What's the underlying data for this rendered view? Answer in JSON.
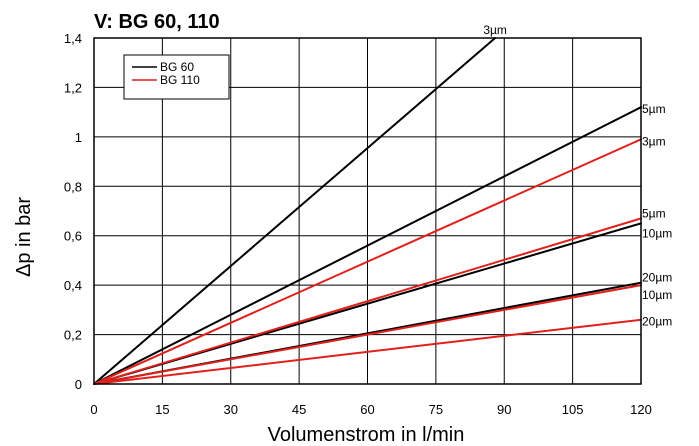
{
  "chart_data": {
    "type": "line",
    "title": "V: BG 60, 110",
    "xlabel": "Volumenstrom in l/min",
    "ylabel": "Δp in bar",
    "xlim": [
      0,
      120
    ],
    "ylim": [
      0,
      1.4
    ],
    "x_ticks": [
      "0",
      "15",
      "30",
      "45",
      "60",
      "75",
      "90",
      "105",
      "120"
    ],
    "y_ticks": [
      "0",
      "0,2",
      "0,4",
      "0,6",
      "0,8",
      "1",
      "1,2",
      "1,4"
    ],
    "grid": true,
    "legend": {
      "placement": "top-left",
      "entries": [
        {
          "name": "BG 60",
          "color": "#000000"
        },
        {
          "name": "BG 110",
          "color": "#e0201b"
        }
      ]
    },
    "series": [
      {
        "group": "BG 60",
        "label": "3µm",
        "color": "#000000",
        "points": [
          [
            0,
            0
          ],
          [
            88,
            1.4
          ]
        ]
      },
      {
        "group": "BG 60",
        "label": "5µm",
        "color": "#000000",
        "points": [
          [
            0,
            0
          ],
          [
            120,
            1.12
          ]
        ]
      },
      {
        "group": "BG 60",
        "label": "10µm",
        "color": "#000000",
        "points": [
          [
            0,
            0
          ],
          [
            120,
            0.65
          ]
        ]
      },
      {
        "group": "BG 60",
        "label": "20µm",
        "color": "#000000",
        "points": [
          [
            0,
            0
          ],
          [
            120,
            0.41
          ]
        ]
      },
      {
        "group": "BG 110",
        "label": "3µm",
        "color": "#e0201b",
        "points": [
          [
            0,
            0
          ],
          [
            120,
            0.99
          ]
        ]
      },
      {
        "group": "BG 110",
        "label": "5µm",
        "color": "#e0201b",
        "points": [
          [
            0,
            0
          ],
          [
            120,
            0.67
          ]
        ]
      },
      {
        "group": "BG 110",
        "label": "10µm",
        "color": "#e0201b",
        "points": [
          [
            0,
            0
          ],
          [
            120,
            0.4
          ]
        ]
      },
      {
        "group": "BG 110",
        "label": "20µm",
        "color": "#e0201b",
        "points": [
          [
            0,
            0
          ],
          [
            120,
            0.26
          ]
        ]
      }
    ]
  }
}
